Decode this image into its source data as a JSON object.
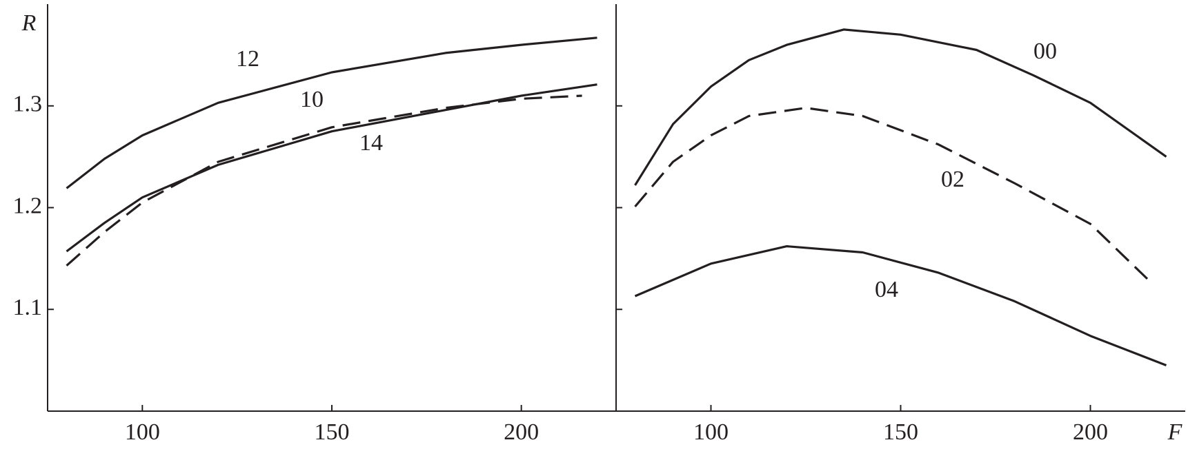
{
  "chart_data": [
    {
      "type": "line",
      "ylabel": "R",
      "xlim": [
        75,
        225
      ],
      "ylim": [
        1.0,
        1.4
      ],
      "xticks": [
        100,
        150,
        200
      ],
      "yticks": [
        1.1,
        1.2,
        1.3
      ],
      "ytick_labels": true,
      "series": [
        {
          "name": "12",
          "color": "#231f20",
          "dashed": false,
          "x": [
            80,
            90,
            100,
            120,
            150,
            180,
            200,
            220
          ],
          "values": [
            1.219,
            1.248,
            1.271,
            1.303,
            1.333,
            1.352,
            1.36,
            1.367
          ]
        },
        {
          "name": "10",
          "color": "#231f20",
          "dashed": false,
          "x": [
            80,
            90,
            100,
            120,
            150,
            180,
            200,
            220
          ],
          "values": [
            1.157,
            1.185,
            1.21,
            1.242,
            1.275,
            1.296,
            1.31,
            1.321
          ]
        },
        {
          "name": "14",
          "color": "#231f20",
          "dashed": true,
          "x": [
            80,
            90,
            100,
            120,
            150,
            180,
            200,
            216
          ],
          "values": [
            1.143,
            1.176,
            1.205,
            1.245,
            1.279,
            1.298,
            1.307,
            1.31
          ]
        }
      ]
    },
    {
      "type": "line",
      "xlabel": "F",
      "xlim": [
        75,
        225
      ],
      "ylim": [
        1.0,
        1.4
      ],
      "xticks": [
        100,
        150,
        200
      ],
      "yticks": [
        1.1,
        1.2,
        1.3
      ],
      "ytick_labels": false,
      "series": [
        {
          "name": "00",
          "color": "#231f20",
          "dashed": false,
          "x": [
            80,
            90,
            100,
            110,
            120,
            135,
            150,
            170,
            185,
            200,
            220
          ],
          "values": [
            1.222,
            1.282,
            1.319,
            1.345,
            1.36,
            1.375,
            1.37,
            1.355,
            1.33,
            1.303,
            1.25
          ]
        },
        {
          "name": "02",
          "color": "#231f20",
          "dashed": true,
          "x": [
            80,
            90,
            100,
            110,
            125,
            140,
            160,
            180,
            200,
            215
          ],
          "values": [
            1.201,
            1.245,
            1.271,
            1.29,
            1.298,
            1.29,
            1.262,
            1.224,
            1.184,
            1.13
          ]
        },
        {
          "name": "04",
          "color": "#231f20",
          "dashed": false,
          "x": [
            80,
            100,
            120,
            140,
            160,
            180,
            200,
            220
          ],
          "values": [
            1.113,
            1.145,
            1.162,
            1.156,
            1.136,
            1.108,
            1.074,
            1.045
          ]
        }
      ]
    }
  ]
}
